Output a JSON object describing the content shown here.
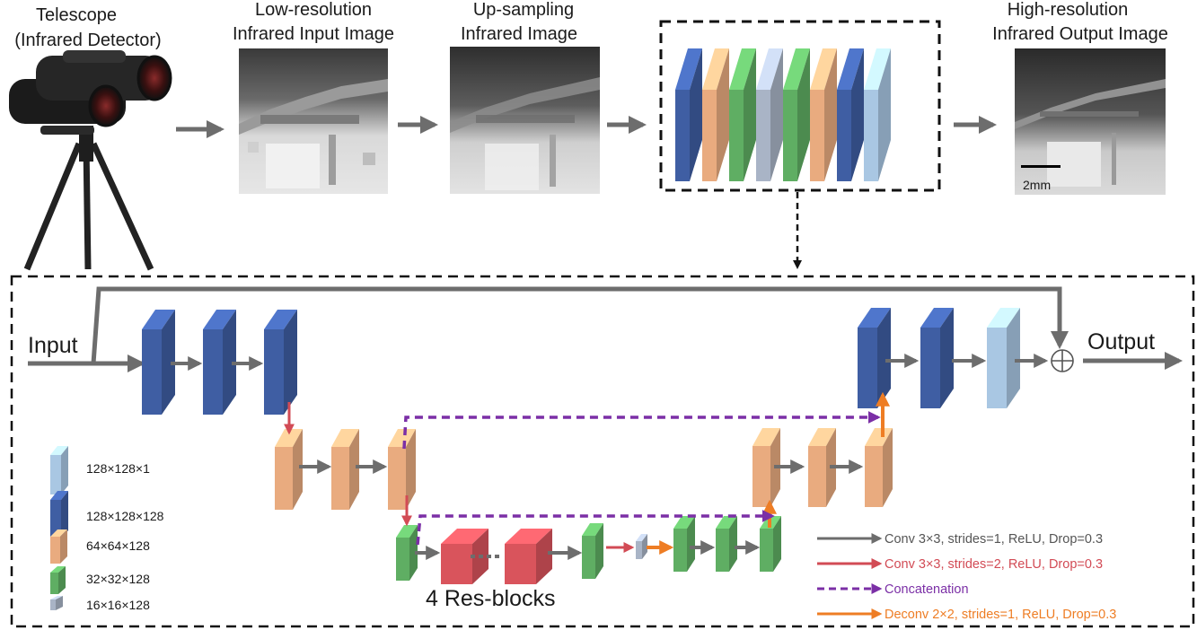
{
  "top_row": {
    "telescope_caption": [
      "Telescope",
      "(Infrared Detector)"
    ],
    "lowres_caption": [
      "Low-resolution",
      "Infrared Input Image"
    ],
    "upsampling_caption": [
      "Up-sampling",
      "Infrared Image"
    ],
    "highres_caption": [
      "High-resolution",
      "Infrared Output Image"
    ],
    "scale_bar_label": "2mm"
  },
  "network": {
    "input_label": "Input",
    "output_label": "Output",
    "resblocks_label": "4 Res-blocks"
  },
  "size_legend": [
    {
      "label": "128×128×1",
      "color": "#a9c7e3"
    },
    {
      "label": "128×128×128",
      "color": "#3f5ea3"
    },
    {
      "label": "64×64×128",
      "color": "#e9ab7f"
    },
    {
      "label": "32×32×128",
      "color": "#5fae63"
    },
    {
      "label": "16×16×128",
      "color": "#a9b4c6"
    }
  ],
  "operation_legend": [
    {
      "label": "Conv 3×3,  strides=1, ReLU, Drop=0.3",
      "color": "#6d6d6d"
    },
    {
      "label": "Conv 3×3,  strides=2, ReLU, Drop=0.3",
      "color": "#d24b55"
    },
    {
      "label": "Concatenation",
      "color": "#7b2fa6"
    },
    {
      "label": "Deconv 2×2,  strides=1, ReLU, Drop=0.3",
      "color": "#ee7d24"
    }
  ],
  "colors": {
    "blue_dark": "#3f5ea3",
    "blue_light": "#a9c7e3",
    "orange": "#e9ab7f",
    "green": "#5fae63",
    "grey_blue": "#a9b4c6",
    "resblock_red": "#d9545c",
    "arrow_grey": "#6d6d6d",
    "arrow_red": "#d24b55",
    "concat_purple": "#7b2fa6",
    "deconv_orange": "#ee7d24"
  }
}
